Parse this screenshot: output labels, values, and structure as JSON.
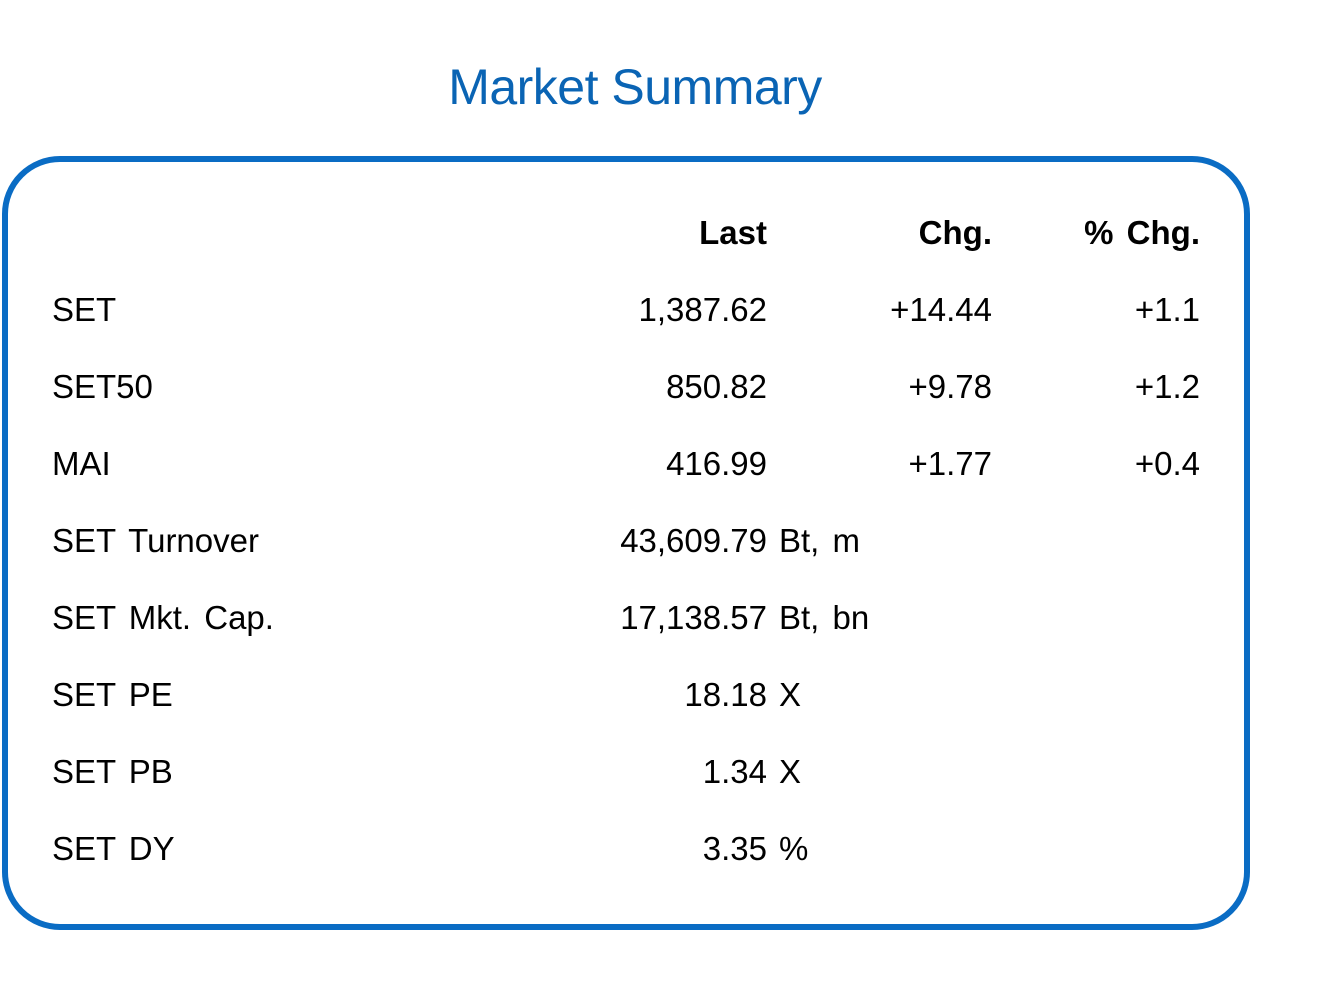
{
  "title": "Market Summary",
  "headers": {
    "last": "Last",
    "chg": "Chg.",
    "pct_chg": "% Chg."
  },
  "rows": [
    {
      "label": "SET",
      "last": "1,387.62",
      "chg": "+14.44",
      "pct_chg": "+1.1",
      "unit": ""
    },
    {
      "label": "SET50",
      "last": "850.82",
      "chg": "+9.78",
      "pct_chg": "+1.2",
      "unit": ""
    },
    {
      "label": "MAI",
      "last": "416.99",
      "chg": "+1.77",
      "pct_chg": "+0.4",
      "unit": ""
    },
    {
      "label": "SET Turnover",
      "last": "43,609.79",
      "chg": "",
      "pct_chg": "",
      "unit": "Bt, m"
    },
    {
      "label": "SET Mkt. Cap.",
      "last": "17,138.57",
      "chg": "",
      "pct_chg": "",
      "unit": "Bt, bn"
    },
    {
      "label": "SET PE",
      "last": "18.18",
      "chg": "",
      "pct_chg": "",
      "unit": "X"
    },
    {
      "label": "SET PB",
      "last": "1.34",
      "chg": "",
      "pct_chg": "",
      "unit": "X"
    },
    {
      "label": "SET DY",
      "last": "3.35",
      "chg": "",
      "pct_chg": "",
      "unit": "%"
    }
  ],
  "colors": {
    "title": "#0A64B4",
    "border": "#0A6CC4"
  }
}
